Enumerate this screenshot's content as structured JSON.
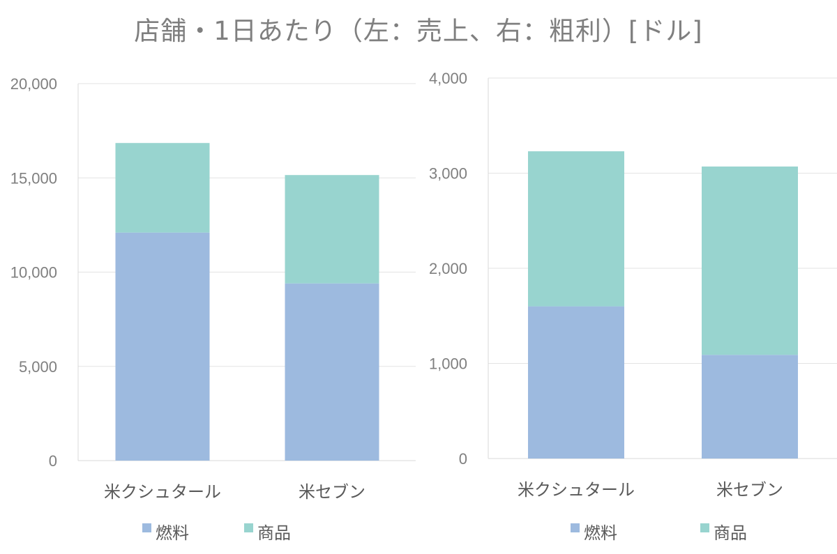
{
  "title": "店舗・1日あたり（左：売上、右：粗利）[ドル]",
  "colors": {
    "燃料": "#9dbadf",
    "商品": "#98d4cf",
    "grid": "#e3e3e3",
    "axis": "#d9d9d9"
  },
  "chart_data": [
    {
      "type": "bar",
      "stacked": true,
      "title": "",
      "categories": [
        "米クシュタール",
        "米セブン"
      ],
      "series": [
        {
          "name": "燃料",
          "values": [
            12100,
            9400
          ]
        },
        {
          "name": "商品",
          "values": [
            4750,
            5750
          ]
        }
      ],
      "ylim": [
        0,
        20000
      ],
      "yticks": [
        0,
        5000,
        10000,
        15000,
        20000
      ],
      "ytick_labels": [
        "0",
        "5,000",
        "10,000",
        "15,000",
        "20,000"
      ],
      "grid": true,
      "legend": "bottom"
    },
    {
      "type": "bar",
      "stacked": true,
      "title": "",
      "categories": [
        "米クシュタール",
        "米セブン"
      ],
      "series": [
        {
          "name": "燃料",
          "values": [
            1600,
            1090
          ]
        },
        {
          "name": "商品",
          "values": [
            1630,
            1980
          ]
        }
      ],
      "ylim": [
        0,
        4000
      ],
      "yticks": [
        0,
        1000,
        2000,
        3000,
        4000
      ],
      "ytick_labels": [
        "0",
        "1,000",
        "2,000",
        "3,000",
        "4,000"
      ],
      "grid": true,
      "legend": "bottom"
    }
  ]
}
